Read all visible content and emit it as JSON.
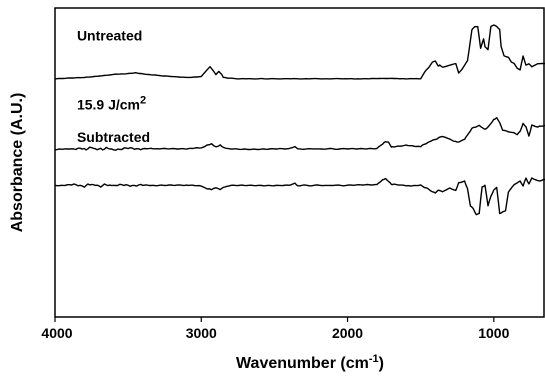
{
  "chart_data": {
    "type": "line",
    "xlabel": "Wavenumber (cm",
    "xlabel_sup": "-1",
    "xlabel_tail": ")",
    "ylabel": "Absorbance (A.U.)",
    "xlim": [
      4000,
      650
    ],
    "x_reversed": true,
    "y_ticks_shown": false,
    "grid": false,
    "legend": "none",
    "x_ticks": [
      "4000",
      "3000",
      "2000",
      "1000"
    ],
    "x_tick_values": [
      4000,
      3000,
      2000,
      1000
    ],
    "ylim": [
      0,
      1
    ],
    "series": [
      {
        "name": "Untreated",
        "label_main": "Untreated",
        "label_sup": "",
        "label_x": 3850,
        "label_y": 0.895,
        "x": [
          4000,
          3800,
          3600,
          3500,
          3450,
          3400,
          3300,
          3100,
          3000,
          2960,
          2940,
          2920,
          2900,
          2880,
          2860,
          2850,
          2820,
          2750,
          2500,
          2000,
          1900,
          1700,
          1600,
          1500,
          1470,
          1460,
          1440,
          1420,
          1400,
          1380,
          1370,
          1350,
          1300,
          1260,
          1240,
          1220,
          1200,
          1180,
          1170,
          1150,
          1130,
          1110,
          1090,
          1070,
          1060,
          1040,
          1020,
          1000,
          980,
          960,
          950,
          930,
          900,
          880,
          860,
          840,
          820,
          800,
          780,
          760,
          740,
          700,
          650
        ],
        "y": [
          0.771,
          0.775,
          0.785,
          0.788,
          0.79,
          0.787,
          0.782,
          0.775,
          0.778,
          0.8,
          0.81,
          0.798,
          0.785,
          0.795,
          0.785,
          0.776,
          0.773,
          0.771,
          0.771,
          0.771,
          0.771,
          0.772,
          0.771,
          0.771,
          0.795,
          0.8,
          0.81,
          0.825,
          0.828,
          0.812,
          0.815,
          0.808,
          0.815,
          0.82,
          0.79,
          0.8,
          0.815,
          0.83,
          0.86,
          0.93,
          0.94,
          0.94,
          0.87,
          0.9,
          0.875,
          0.865,
          0.94,
          0.945,
          0.94,
          0.93,
          0.875,
          0.845,
          0.84,
          0.825,
          0.82,
          0.805,
          0.8,
          0.845,
          0.815,
          0.82,
          0.81,
          0.82,
          0.82
        ]
      },
      {
        "name": "15.9 J/cm2",
        "label_main": "15.9 J/cm",
        "label_sup": "2",
        "label_x": 3850,
        "label_y": 0.672,
        "x": [
          4000,
          3900,
          3800,
          3750,
          3700,
          3650,
          3600,
          3500,
          3400,
          3300,
          3100,
          3000,
          2960,
          2930,
          2900,
          2870,
          2850,
          2800,
          2600,
          2400,
          2360,
          2340,
          2300,
          2000,
          1800,
          1760,
          1740,
          1720,
          1700,
          1680,
          1600,
          1500,
          1450,
          1400,
          1350,
          1300,
          1250,
          1200,
          1150,
          1100,
          1060,
          1040,
          1000,
          980,
          960,
          940,
          900,
          860,
          840,
          820,
          800,
          780,
          760,
          740,
          700,
          650
        ],
        "y": [
          0.541,
          0.545,
          0.543,
          0.548,
          0.542,
          0.546,
          0.543,
          0.545,
          0.545,
          0.544,
          0.545,
          0.547,
          0.556,
          0.56,
          0.55,
          0.556,
          0.548,
          0.544,
          0.543,
          0.544,
          0.552,
          0.544,
          0.544,
          0.544,
          0.546,
          0.56,
          0.568,
          0.565,
          0.55,
          0.55,
          0.555,
          0.552,
          0.565,
          0.575,
          0.585,
          0.575,
          0.565,
          0.575,
          0.61,
          0.62,
          0.608,
          0.615,
          0.64,
          0.645,
          0.63,
          0.605,
          0.6,
          0.595,
          0.59,
          0.6,
          0.625,
          0.615,
          0.585,
          0.62,
          0.615,
          0.62
        ]
      },
      {
        "name": "Subtracted",
        "label_main": "Subtracted",
        "label_sup": "",
        "label_x": 3850,
        "label_y": 0.567,
        "x": [
          4000,
          3900,
          3800,
          3750,
          3700,
          3650,
          3600,
          3500,
          3400,
          3300,
          3100,
          3000,
          2960,
          2930,
          2900,
          2870,
          2850,
          2800,
          2600,
          2400,
          2360,
          2340,
          2300,
          2000,
          1800,
          1760,
          1740,
          1720,
          1700,
          1680,
          1600,
          1500,
          1450,
          1420,
          1400,
          1380,
          1350,
          1300,
          1260,
          1240,
          1200,
          1180,
          1160,
          1140,
          1120,
          1100,
          1080,
          1060,
          1040,
          1020,
          1000,
          980,
          960,
          940,
          920,
          900,
          860,
          820,
          800,
          780,
          760,
          740,
          700,
          650
        ],
        "y": [
          0.425,
          0.428,
          0.424,
          0.43,
          0.423,
          0.428,
          0.425,
          0.427,
          0.426,
          0.426,
          0.426,
          0.425,
          0.415,
          0.412,
          0.418,
          0.412,
          0.42,
          0.425,
          0.426,
          0.426,
          0.432,
          0.424,
          0.426,
          0.426,
          0.428,
          0.445,
          0.448,
          0.44,
          0.43,
          0.43,
          0.425,
          0.426,
          0.415,
          0.405,
          0.402,
          0.41,
          0.405,
          0.418,
          0.41,
          0.435,
          0.44,
          0.415,
          0.36,
          0.35,
          0.33,
          0.335,
          0.42,
          0.425,
          0.36,
          0.39,
          0.41,
          0.42,
          0.335,
          0.34,
          0.345,
          0.405,
          0.43,
          0.44,
          0.425,
          0.45,
          0.43,
          0.45,
          0.44,
          0.445
        ]
      }
    ]
  }
}
